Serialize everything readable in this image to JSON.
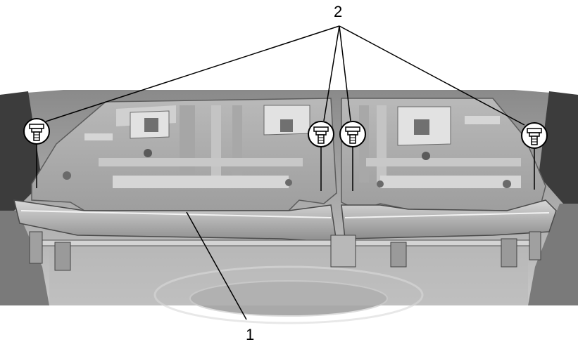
{
  "figure": {
    "callouts": [
      {
        "id": "1",
        "text": "1"
      },
      {
        "id": "2",
        "text": "2"
      }
    ],
    "colors": {
      "background": "#ffffff",
      "line": "#000000",
      "panel_light": "#d2d2d2",
      "panel_mid": "#b4b4b4",
      "panel_dark": "#6e6e6e",
      "panel_shadow": "#3c3c3c"
    },
    "icons": [
      "bolt-icon"
    ]
  }
}
